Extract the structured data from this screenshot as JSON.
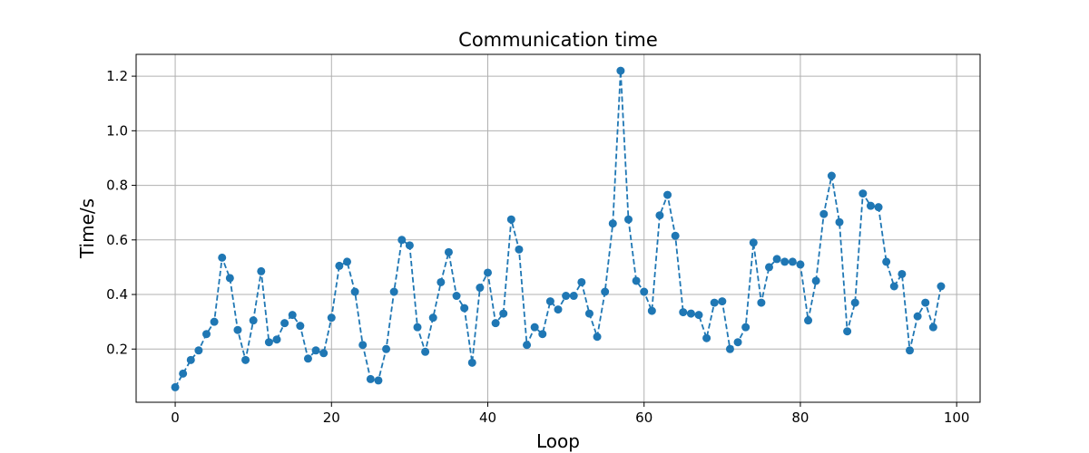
{
  "chart_data": {
    "type": "line",
    "title": "Communication time",
    "xlabel": "Loop",
    "ylabel": "Time/s",
    "xlim": [
      -5,
      103
    ],
    "ylim": [
      0.005,
      1.28
    ],
    "xticks": [
      0,
      20,
      40,
      60,
      80,
      100
    ],
    "xtick_labels": [
      "0",
      "20",
      "40",
      "60",
      "80",
      "100"
    ],
    "yticks": [
      0.2,
      0.4,
      0.6,
      0.8,
      1.0,
      1.2
    ],
    "ytick_labels": [
      "0.2",
      "0.4",
      "0.6",
      "0.8",
      "1.0",
      "1.2"
    ],
    "grid": true,
    "line_style": "dashed",
    "marker": "circle",
    "color": "#1f77b4",
    "series": [
      {
        "x": [
          0,
          1,
          2,
          3,
          4,
          5,
          6,
          7,
          8,
          9,
          10,
          11,
          12,
          13,
          14,
          15,
          16,
          17,
          18,
          19,
          20,
          21,
          22,
          23,
          24,
          25,
          26,
          27,
          28,
          29,
          30,
          31,
          32,
          33,
          34,
          35,
          36,
          37,
          38,
          39,
          40,
          41,
          42,
          43,
          44,
          45,
          46,
          47,
          48,
          49,
          50,
          51,
          52,
          53,
          54,
          55,
          56,
          57,
          58,
          59,
          60,
          61,
          62,
          63,
          64,
          65,
          66,
          67,
          68,
          69,
          70,
          71,
          72,
          73,
          74,
          75,
          76,
          77,
          78,
          79,
          80,
          81,
          82,
          83,
          84,
          85,
          86,
          87,
          88,
          89,
          90,
          91,
          92,
          93,
          94,
          95,
          96,
          97,
          98
        ],
        "values": [
          0.06,
          0.11,
          0.16,
          0.195,
          0.255,
          0.3,
          0.535,
          0.46,
          0.27,
          0.16,
          0.305,
          0.485,
          0.225,
          0.235,
          0.295,
          0.325,
          0.285,
          0.165,
          0.195,
          0.185,
          0.315,
          0.505,
          0.52,
          0.41,
          0.215,
          0.09,
          0.085,
          0.2,
          0.41,
          0.6,
          0.58,
          0.28,
          0.19,
          0.315,
          0.445,
          0.555,
          0.395,
          0.35,
          0.15,
          0.425,
          0.48,
          0.295,
          0.33,
          0.675,
          0.565,
          0.215,
          0.28,
          0.255,
          0.375,
          0.345,
          0.395,
          0.395,
          0.445,
          0.33,
          0.245,
          0.41,
          0.66,
          1.22,
          0.675,
          0.45,
          0.41,
          0.34,
          0.69,
          0.765,
          0.615,
          0.335,
          0.33,
          0.325,
          0.24,
          0.37,
          0.375,
          0.2,
          0.225,
          0.28,
          0.59,
          0.37,
          0.5,
          0.53,
          0.52,
          0.52,
          0.51,
          0.305,
          0.45,
          0.695,
          0.835,
          0.665,
          0.265,
          0.37,
          0.77,
          0.725,
          0.72,
          0.52,
          0.43,
          0.475,
          0.195,
          0.32,
          0.37,
          0.28,
          0.43
        ]
      }
    ]
  }
}
